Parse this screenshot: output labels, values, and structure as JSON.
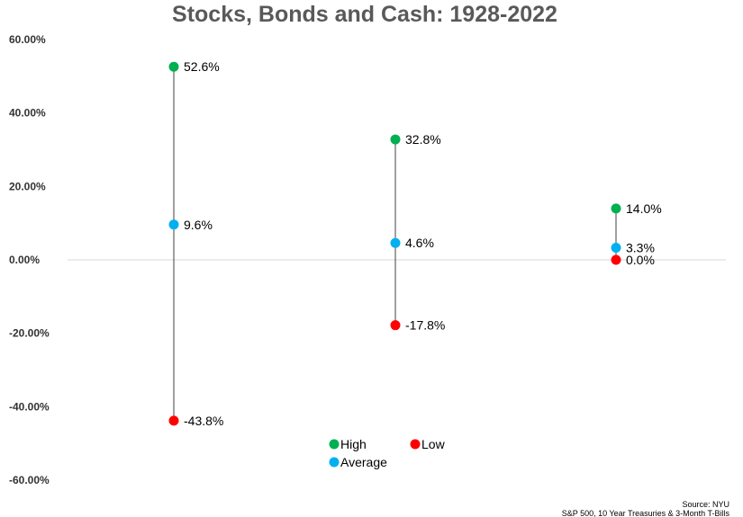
{
  "chart_data": {
    "type": "scatter",
    "title": "Stocks, Bonds and Cash: 1928-2022",
    "xlabel": "",
    "ylabel": "",
    "ylim": [
      -60,
      60
    ],
    "yticks": [
      "60.00%",
      "40.00%",
      "20.00%",
      "0.00%",
      "-20.00%",
      "-40.00%",
      "-60.00%"
    ],
    "ytick_values": [
      60,
      40,
      20,
      0,
      -20,
      -40,
      -60
    ],
    "grid": false,
    "zero_line": true,
    "legend_position": "bottom-center",
    "groups": [
      {
        "high": 52.6,
        "average": 9.6,
        "low": -43.8,
        "high_label": "52.6%",
        "average_label": "9.6%",
        "low_label": "-43.8%"
      },
      {
        "high": 32.8,
        "average": 4.6,
        "low": -17.8,
        "high_label": "32.8%",
        "average_label": "4.6%",
        "low_label": "-17.8%"
      },
      {
        "high": 14.0,
        "average": 3.3,
        "low": 0.0,
        "high_label": "14.0%",
        "average_label": "3.3%",
        "low_label": "0.0%"
      }
    ],
    "series": [
      {
        "name": "High",
        "color": "#00b050"
      },
      {
        "name": "Low",
        "color": "#ff0000"
      },
      {
        "name": "Average",
        "color": "#00b0f0"
      }
    ],
    "source_lines": [
      "Source: NYU",
      "S&P 500, 10 Year Treasuries & 3-Month T-Bills"
    ]
  }
}
